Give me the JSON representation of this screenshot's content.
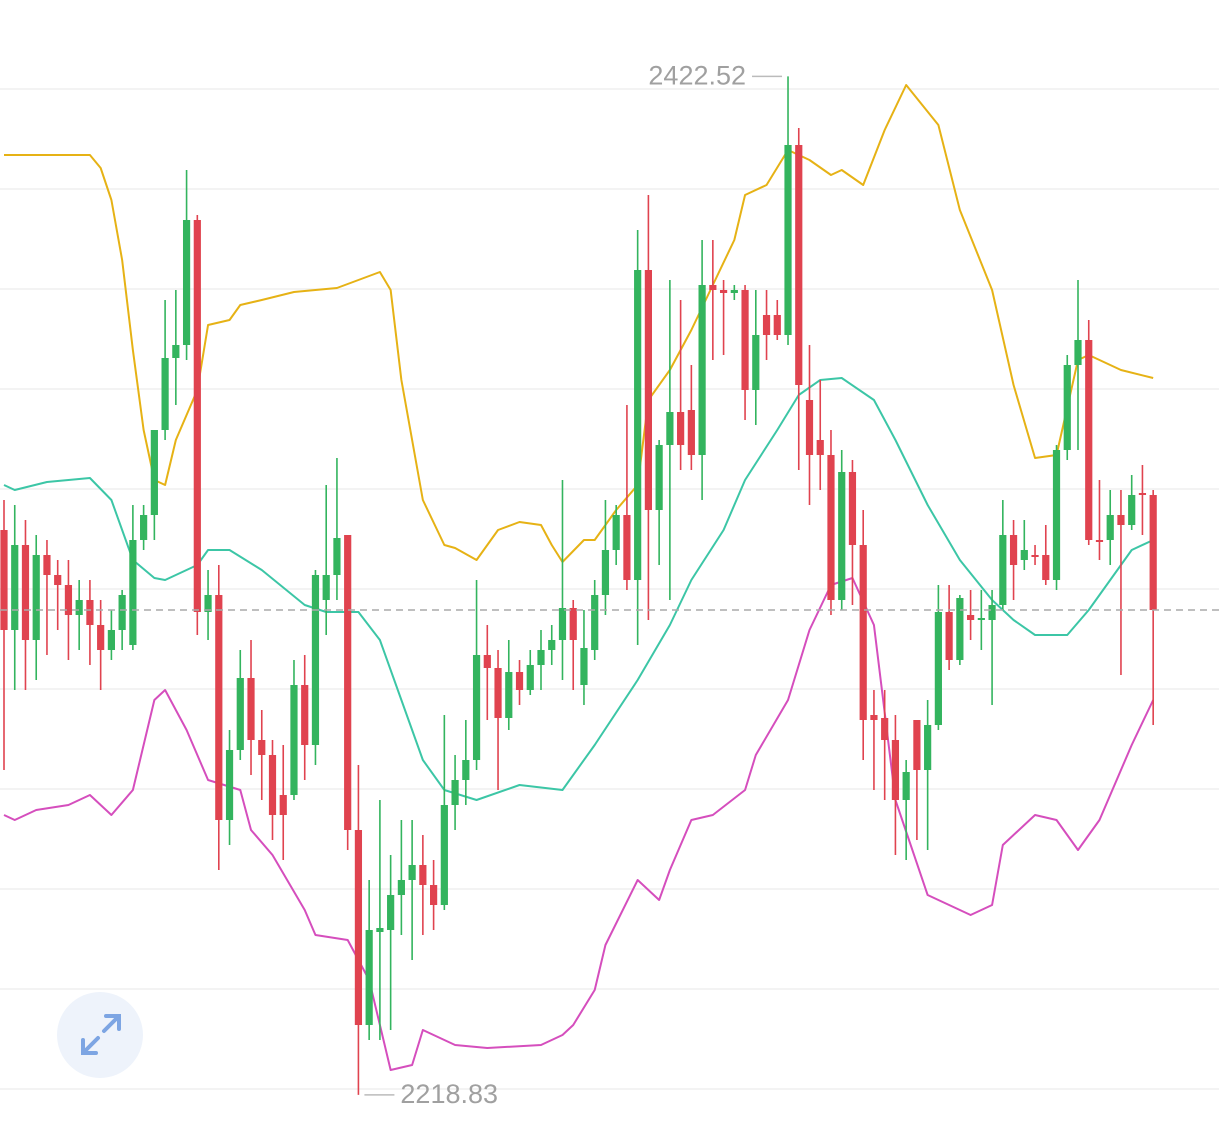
{
  "chart_data": {
    "type": "candlestick",
    "ylim": [
      2215.8,
      2437.8
    ],
    "yticks": [
      2220,
      2240,
      2260,
      2280,
      2300,
      2320,
      2340,
      2360,
      2380,
      2400,
      2420
    ],
    "grid": true,
    "up_color": "#33b45e",
    "down_color": "#e0434f",
    "ohlc": [
      [
        2331.8,
        2337.8,
        2283.8,
        2311.8
      ],
      [
        2311.8,
        2336.8,
        2299.8,
        2328.8
      ],
      [
        2328.8,
        2333.8,
        2299.8,
        2309.8
      ],
      [
        2309.8,
        2330.8,
        2301.8,
        2326.8
      ],
      [
        2326.8,
        2329.8,
        2306.8,
        2322.8
      ],
      [
        2322.8,
        2325.8,
        2311.8,
        2320.8
      ],
      [
        2320.8,
        2325.8,
        2305.8,
        2314.8
      ],
      [
        2314.8,
        2321.8,
        2307.8,
        2317.8
      ],
      [
        2317.8,
        2321.8,
        2304.8,
        2312.8
      ],
      [
        2312.8,
        2317.8,
        2299.8,
        2307.8
      ],
      [
        2307.8,
        2315.8,
        2305.8,
        2311.8
      ],
      [
        2311.8,
        2319.8,
        2307.8,
        2318.8
      ],
      [
        2308.8,
        2336.8,
        2307.8,
        2329.8
      ],
      [
        2329.8,
        2336.8,
        2327.8,
        2334.8
      ],
      [
        2334.8,
        2351.8,
        2329.8,
        2351.8
      ],
      [
        2351.8,
        2377.8,
        2349.8,
        2366.2
      ],
      [
        2366.2,
        2379.8,
        2356.8,
        2368.8
      ],
      [
        2368.8,
        2403.8,
        2365.8,
        2393.8
      ],
      [
        2393.8,
        2394.8,
        2310.8,
        2315.4
      ],
      [
        2315.4,
        2323.8,
        2309.8,
        2318.8
      ],
      [
        2318.8,
        2324.8,
        2263.8,
        2273.8
      ],
      [
        2273.8,
        2291.8,
        2268.8,
        2287.8
      ],
      [
        2287.8,
        2307.8,
        2285.8,
        2302.2
      ],
      [
        2302.2,
        2309.8,
        2282.8,
        2289.8
      ],
      [
        2289.8,
        2295.8,
        2277.8,
        2286.8
      ],
      [
        2286.8,
        2289.8,
        2269.8,
        2274.8
      ],
      [
        2278.8,
        2288.8,
        2265.8,
        2274.8
      ],
      [
        2278.8,
        2305.8,
        2277.8,
        2300.8
      ],
      [
        2300.8,
        2306.8,
        2281.8,
        2288.8
      ],
      [
        2288.8,
        2323.8,
        2284.8,
        2322.8
      ],
      [
        2317.8,
        2340.8,
        2310.8,
        2322.8
      ],
      [
        2322.8,
        2346.2,
        2317.8,
        2330.2
      ],
      [
        2330.8,
        2330.8,
        2267.8,
        2271.8
      ],
      [
        2271.8,
        2284.8,
        2218.83,
        2232.8
      ],
      [
        2232.8,
        2261.8,
        2229.8,
        2251.8
      ],
      [
        2251.4,
        2277.8,
        2229.8,
        2252.2
      ],
      [
        2251.8,
        2266.8,
        2231.8,
        2258.8
      ],
      [
        2258.8,
        2273.8,
        2250.8,
        2261.8
      ],
      [
        2261.8,
        2273.8,
        2245.8,
        2264.8
      ],
      [
        2264.8,
        2270.8,
        2250.8,
        2260.8
      ],
      [
        2260.8,
        2265.8,
        2251.8,
        2256.8
      ],
      [
        2256.8,
        2294.8,
        2255.8,
        2276.8
      ],
      [
        2276.8,
        2286.8,
        2271.8,
        2281.8
      ],
      [
        2281.8,
        2293.8,
        2276.8,
        2285.8
      ],
      [
        2285.8,
        2321.8,
        2283.8,
        2306.8
      ],
      [
        2306.8,
        2312.8,
        2293.8,
        2304.2
      ],
      [
        2304.2,
        2307.8,
        2279.8,
        2294.2
      ],
      [
        2294.2,
        2309.8,
        2291.8,
        2303.4
      ],
      [
        2303.4,
        2305.8,
        2296.8,
        2299.8
      ],
      [
        2299.8,
        2307.8,
        2298.8,
        2304.8
      ],
      [
        2304.8,
        2311.8,
        2299.8,
        2307.8
      ],
      [
        2307.8,
        2312.8,
        2304.8,
        2309.8
      ],
      [
        2309.8,
        2341.8,
        2301.8,
        2316.2
      ],
      [
        2316.2,
        2317.8,
        2299.8,
        2309.8
      ],
      [
        2300.8,
        2315.8,
        2296.8,
        2308.2
      ],
      [
        2307.8,
        2321.8,
        2305.8,
        2318.8
      ],
      [
        2318.8,
        2337.8,
        2314.8,
        2327.8
      ],
      [
        2327.8,
        2336.8,
        2324.8,
        2334.8
      ],
      [
        2334.8,
        2356.8,
        2319.8,
        2321.8
      ],
      [
        2321.8,
        2391.8,
        2308.8,
        2383.8
      ],
      [
        2383.8,
        2398.8,
        2313.8,
        2335.8
      ],
      [
        2335.8,
        2349.8,
        2324.8,
        2348.8
      ],
      [
        2348.8,
        2381.8,
        2317.8,
        2355.4
      ],
      [
        2355.4,
        2377.8,
        2343.8,
        2348.8
      ],
      [
        2355.8,
        2364.8,
        2343.8,
        2346.8
      ],
      [
        2346.8,
        2389.8,
        2337.8,
        2380.8
      ],
      [
        2380.8,
        2389.8,
        2365.8,
        2379.8
      ],
      [
        2379.8,
        2381.8,
        2366.8,
        2379.2
      ],
      [
        2379.2,
        2380.8,
        2377.8,
        2379.8
      ],
      [
        2379.8,
        2380.8,
        2353.8,
        2359.8
      ],
      [
        2359.8,
        2379.8,
        2352.8,
        2370.8
      ],
      [
        2374.8,
        2379.8,
        2365.8,
        2370.8
      ],
      [
        2374.8,
        2377.8,
        2369.8,
        2370.8
      ],
      [
        2370.8,
        2422.52,
        2368.8,
        2408.8
      ],
      [
        2408.8,
        2412.2,
        2343.8,
        2360.8
      ],
      [
        2357.8,
        2368.8,
        2336.8,
        2346.8
      ],
      [
        2349.8,
        2361.8,
        2339.8,
        2346.8
      ],
      [
        2346.8,
        2351.8,
        2314.8,
        2317.8
      ],
      [
        2317.8,
        2347.8,
        2315.8,
        2343.4
      ],
      [
        2343.4,
        2345.8,
        2316.8,
        2328.8
      ],
      [
        2328.8,
        2335.8,
        2285.8,
        2293.8
      ],
      [
        2294.8,
        2299.8,
        2279.8,
        2293.8
      ],
      [
        2294.2,
        2299.8,
        2277.8,
        2289.8
      ],
      [
        2289.8,
        2294.8,
        2266.8,
        2277.8
      ],
      [
        2277.8,
        2285.8,
        2265.8,
        2283.4
      ],
      [
        2293.8,
        2293.8,
        2269.8,
        2283.8
      ],
      [
        2283.8,
        2297.8,
        2267.8,
        2292.8
      ],
      [
        2292.8,
        2320.8,
        2291.8,
        2315.4
      ],
      [
        2315.4,
        2320.8,
        2303.8,
        2305.8
      ],
      [
        2305.8,
        2318.8,
        2304.8,
        2318.2
      ],
      [
        2314.8,
        2319.8,
        2309.8,
        2313.8
      ],
      [
        2313.8,
        2319.8,
        2307.8,
        2314.2
      ],
      [
        2313.8,
        2319.8,
        2296.8,
        2316.8
      ],
      [
        2316.8,
        2337.8,
        2315.8,
        2330.8
      ],
      [
        2330.8,
        2333.8,
        2317.8,
        2324.8
      ],
      [
        2325.8,
        2333.8,
        2323.8,
        2327.8
      ],
      [
        2326.8,
        2328.8,
        2324.8,
        2326.4
      ],
      [
        2326.8,
        2332.8,
        2320.8,
        2321.8
      ],
      [
        2321.8,
        2348.8,
        2319.8,
        2347.8
      ],
      [
        2347.8,
        2366.8,
        2345.8,
        2364.8
      ],
      [
        2364.8,
        2381.8,
        2347.8,
        2369.8
      ],
      [
        2369.8,
        2373.8,
        2328.8,
        2329.8
      ],
      [
        2329.8,
        2341.8,
        2325.8,
        2329.4
      ],
      [
        2329.8,
        2339.8,
        2324.8,
        2334.8
      ],
      [
        2334.8,
        2339.8,
        2302.8,
        2332.8
      ],
      [
        2332.8,
        2342.8,
        2331.8,
        2338.8
      ],
      [
        2339.2,
        2344.8,
        2330.8,
        2338.8
      ],
      [
        2338.8,
        2339.8,
        2292.8,
        2315.8
      ]
    ],
    "bands": [
      {
        "color": "#e6b215",
        "x": [
          0,
          8,
          9,
          10,
          11,
          12,
          13,
          14,
          15,
          16,
          18,
          19,
          21,
          22,
          24,
          27,
          31,
          33,
          35,
          36,
          37,
          39,
          41,
          42,
          44,
          46,
          48,
          50,
          51,
          52,
          54,
          55,
          57,
          59,
          60,
          62,
          64,
          66,
          68,
          69,
          71,
          73,
          75,
          77,
          78,
          80,
          82,
          84,
          87,
          89,
          92,
          94,
          96,
          98,
          100,
          101,
          104,
          107
        ],
        "values": [
          2406.8,
          2406.8,
          2404.2,
          2397.8,
          2385.8,
          2367.8,
          2351.8,
          2341.8,
          2340.8,
          2349.8,
          2359.8,
          2372.8,
          2373.8,
          2376.8,
          2377.8,
          2379.4,
          2380.2,
          2381.8,
          2383.4,
          2379.8,
          2361.8,
          2337.8,
          2328.8,
          2328.2,
          2325.8,
          2331.8,
          2333.4,
          2332.8,
          2328.8,
          2325.4,
          2329.8,
          2329.8,
          2335.8,
          2340.8,
          2357.8,
          2363.8,
          2371.8,
          2380.8,
          2389.8,
          2398.8,
          2400.8,
          2407.8,
          2405.8,
          2402.8,
          2403.8,
          2400.8,
          2411.8,
          2420.8,
          2412.8,
          2395.8,
          2379.8,
          2360.8,
          2346.2,
          2346.8,
          2365.8,
          2366.8,
          2363.8,
          2362.2
        ]
      },
      {
        "color": "#3cc6a6",
        "x": [
          0,
          1,
          4,
          8,
          10,
          12,
          14,
          15,
          18,
          19,
          21,
          24,
          28,
          30,
          33,
          35,
          37,
          39,
          41,
          44,
          48,
          52,
          55,
          59,
          62,
          64,
          67,
          69,
          72,
          74,
          76,
          78,
          81,
          83,
          86,
          89,
          92,
          94,
          96,
          99,
          101,
          103,
          105,
          107
        ],
        "values": [
          2340.8,
          2339.8,
          2341.4,
          2342.2,
          2337.8,
          2325.8,
          2322.2,
          2321.8,
          2324.8,
          2327.8,
          2327.8,
          2323.8,
          2316.8,
          2315.4,
          2315.4,
          2309.8,
          2297.8,
          2285.8,
          2279.8,
          2277.8,
          2280.8,
          2279.8,
          2288.8,
          2301.8,
          2312.8,
          2321.8,
          2331.8,
          2341.8,
          2351.8,
          2358.8,
          2361.8,
          2362.2,
          2357.8,
          2349.8,
          2336.8,
          2325.8,
          2317.8,
          2313.8,
          2310.8,
          2310.8,
          2315.8,
          2321.8,
          2327.8,
          2329.8
        ]
      },
      {
        "color": "#d54ebd",
        "x": [
          0,
          1,
          3,
          6,
          8,
          10,
          12,
          14,
          15,
          17,
          19,
          22,
          23,
          25,
          28,
          29,
          32,
          34,
          35,
          36,
          38,
          39,
          42,
          45,
          50,
          52,
          53,
          55,
          56,
          59,
          61,
          62,
          64,
          66,
          69,
          70,
          73,
          75,
          77,
          79,
          81,
          83,
          86,
          90,
          92,
          93,
          96,
          98,
          100,
          102,
          105,
          107
        ],
        "values": [
          2274.8,
          2273.8,
          2275.8,
          2276.8,
          2278.8,
          2274.8,
          2279.8,
          2297.8,
          2299.8,
          2291.8,
          2281.8,
          2279.8,
          2271.8,
          2266.8,
          2255.8,
          2250.8,
          2249.8,
          2241.8,
          2232.8,
          2223.8,
          2224.8,
          2231.8,
          2228.8,
          2228.2,
          2228.8,
          2230.8,
          2232.8,
          2239.8,
          2248.8,
          2261.8,
          2257.8,
          2263.8,
          2273.8,
          2274.8,
          2279.8,
          2286.8,
          2297.8,
          2311.8,
          2320.8,
          2322.2,
          2312.8,
          2277.8,
          2258.8,
          2254.8,
          2256.8,
          2268.8,
          2274.8,
          2273.8,
          2267.8,
          2273.8,
          2288.8,
          2297.8
        ]
      }
    ]
  }
}
